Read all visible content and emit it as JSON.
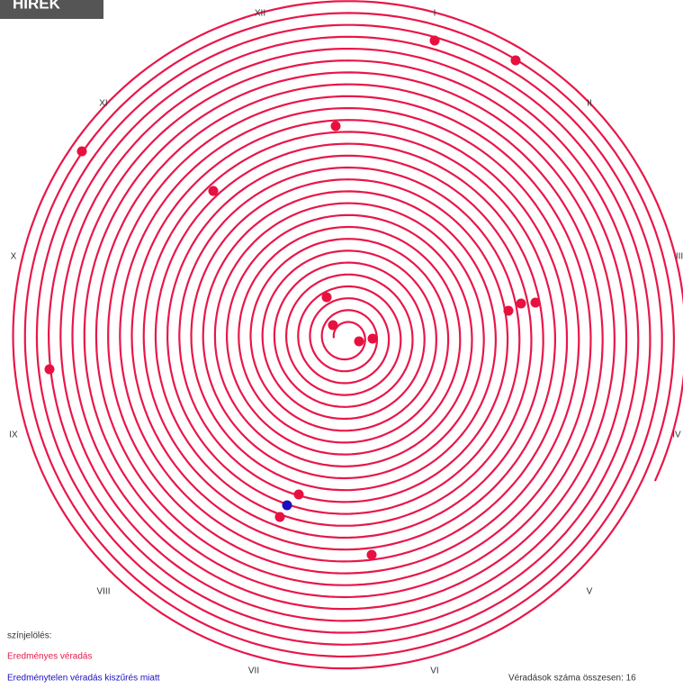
{
  "badge": "HÍREK",
  "months": [
    "XII",
    "I",
    "II",
    "III",
    "IV",
    "V",
    "VI",
    "VII",
    "VIII",
    "IX",
    "X",
    "XI"
  ],
  "legend": {
    "title": "színjelölés:",
    "items": [
      "Eredményes véradás",
      "Eredménytelen véradás kiszűrés miatt"
    ]
  },
  "total": "Véradások száma összesen: 16"
}
